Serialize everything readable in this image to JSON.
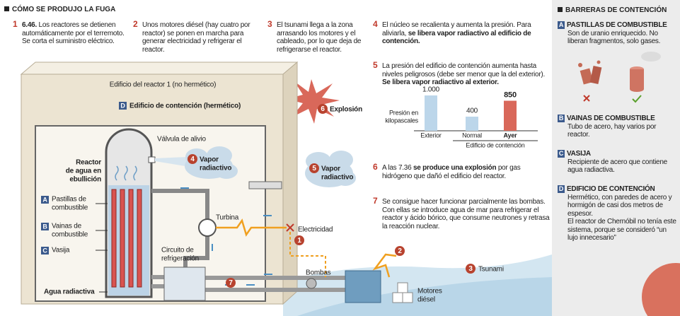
{
  "header": {
    "title": "CÓMO SE PRODUJO LA FUGA"
  },
  "steps": [
    {
      "number": "1",
      "parts": [
        {
          "text": "6.46.",
          "bold": true
        },
        {
          "text": " Los reactores se detienen automáticamente por el terremoto. Se corta el suministro eléctrico."
        }
      ]
    },
    {
      "number": "2",
      "parts": [
        {
          "text": "Unos motores diésel (hay cuatro por reactor) se ponen en marcha para generar electricidad y refrigerar el reactor."
        }
      ]
    },
    {
      "number": "3",
      "parts": [
        {
          "text": "El tsunami llega a la zona arrasando los motores y el cableado, por lo que deja de refrigerarse el reactor."
        }
      ]
    },
    {
      "number": "4",
      "parts": [
        {
          "text": "El núcleo se recalienta y aumenta la presión. Para aliviarla, "
        },
        {
          "text": "se libera vapor radiactivo al edificio de contención.",
          "bold": true
        }
      ]
    },
    {
      "number": "5",
      "parts": [
        {
          "text": "La presión del edificio de contención aumenta hasta niveles peligrosos (debe ser menor que la del exterior). "
        },
        {
          "text": "Se libera vapor radiactivo al exterior.",
          "bold": true
        }
      ]
    },
    {
      "number": "6",
      "parts": [
        {
          "text": "A las 7.36 "
        },
        {
          "text": "se produce una explosión",
          "bold": true
        },
        {
          "text": " por gas hidrógeno que dañó el edificio del reactor."
        }
      ]
    },
    {
      "number": "7",
      "parts": [
        {
          "text": "Se consigue hacer funcionar parcialmente las bombas. Con ellas se introduce agua de mar para refrigerar el reactor y ácido bórico, que consume neutrones y retrasa la reacción nuclear."
        }
      ]
    }
  ],
  "diagram": {
    "building": "Edificio del reactor 1 (no hermético)",
    "containment": {
      "letter": "D",
      "text": "Edificio de contención (hermético)"
    },
    "valve": "Válvula de alivio",
    "reactor": [
      "Reactor",
      "de agua en",
      "ebullición"
    ],
    "vapor_inside": {
      "badge": "4",
      "lines": [
        "Vapor",
        "radiactivo"
      ]
    },
    "vapor_outside": {
      "badge": "5",
      "lines": [
        "Vapor",
        "radiactivo"
      ]
    },
    "explosion": {
      "badge": "6",
      "text": "Explosión"
    },
    "parts": [
      {
        "letter": "A",
        "lines": [
          "Pastillas de",
          "combustible"
        ]
      },
      {
        "letter": "B",
        "lines": [
          "Vainas de",
          "combustible"
        ]
      },
      {
        "letter": "C",
        "lines": [
          "Vasija"
        ]
      }
    ],
    "water": "Agua radiactiva",
    "turbine": "Turbina",
    "electricity": "Electricidad",
    "cooling": [
      "Circuito de",
      "refrigeración"
    ],
    "pumps": "Bombas",
    "diesel": [
      "Motores",
      "diésel"
    ],
    "tsunami": {
      "badge": "3",
      "text": "Tsunami"
    },
    "markers": [
      "1",
      "2",
      "7"
    ]
  },
  "pressure_chart": {
    "type": "bar",
    "ylabel": [
      "Presión en",
      "kilopascales"
    ],
    "categories": [
      "Exterior",
      "Normal",
      "Ayer"
    ],
    "values": [
      1000,
      400,
      850
    ],
    "value_labels": [
      "1.000",
      "400",
      "850"
    ],
    "colors": [
      "#bcd6ea",
      "#bcd6ea",
      "#d9685a"
    ],
    "group_label": "Edificio de contención"
  },
  "barriers": {
    "title": "BARRERAS DE CONTENCIÓN",
    "items": [
      {
        "letter": "A",
        "title": "PASTILLAS DE COMBUSTIBLE",
        "text": [
          "Son de uranio enriquecido. No liberan fragmentos, solo gases."
        ]
      },
      {
        "letter": "B",
        "title": "VAINAS DE COMBUSTIBLE",
        "text": [
          "Tubo de acero, hay varios por reactor."
        ]
      },
      {
        "letter": "C",
        "title": "VASIJA",
        "text": [
          "Recipiente de acero que contiene agua radiactiva."
        ]
      },
      {
        "letter": "D",
        "title": "EDIFICIO DE CONTENCIÓN",
        "text": [
          "Hermético, con paredes de acero y hormigón de casi dos metros de espesor.",
          "El reactor de Chernóbil no tenía este sistema, porque se consideró “un lujo innecesario”"
        ]
      }
    ]
  }
}
